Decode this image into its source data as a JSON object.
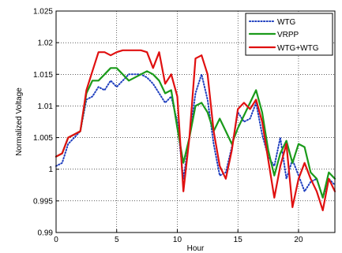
{
  "chart_data": {
    "type": "line",
    "xlabel": "Hour",
    "ylabel": "Normalized Voltage",
    "xlim": [
      0,
      23
    ],
    "ylim": [
      0.99,
      1.025
    ],
    "xticks": [
      0,
      5,
      10,
      15,
      20
    ],
    "yticks": [
      0.99,
      0.995,
      1,
      1.005,
      1.01,
      1.015,
      1.02,
      1.025
    ],
    "ytick_labels": [
      "0.99",
      "0.995",
      "1",
      "1.005",
      "1.01",
      "1.015",
      "1.02",
      "1.025"
    ],
    "grid": true,
    "legend_position": "top-right",
    "series": [
      {
        "name": "WTG",
        "color": "#1f3fbf",
        "style": "dotted",
        "x": [
          0,
          0.5,
          1,
          1.5,
          2,
          2.5,
          3,
          3.5,
          4,
          4.5,
          5,
          5.5,
          6,
          6.5,
          7,
          7.5,
          8,
          8.5,
          9,
          9.5,
          10,
          10.5,
          11,
          11.5,
          12,
          12.5,
          13,
          13.5,
          14,
          14.5,
          15,
          15.5,
          16,
          16.5,
          17,
          17.5,
          18,
          18.5,
          19,
          19.5,
          20,
          20.5,
          21,
          21.5,
          22,
          22.5,
          23
        ],
        "values": [
          1.0005,
          1.001,
          1.004,
          1.005,
          1.006,
          1.011,
          1.0115,
          1.013,
          1.0125,
          1.014,
          1.013,
          1.014,
          1.015,
          1.015,
          1.015,
          1.0145,
          1.0135,
          1.012,
          1.0105,
          1.0115,
          1.0075,
          0.9985,
          1.005,
          1.012,
          1.015,
          1.011,
          1.004,
          0.999,
          0.9995,
          1.0035,
          1.009,
          1.0075,
          1.008,
          1.0105,
          1.0055,
          1.002,
          1.0005,
          1.005,
          0.9985,
          1.0015,
          0.999,
          0.9965,
          0.998,
          0.9985,
          0.9955,
          0.9985,
          0.9975
        ]
      },
      {
        "name": "VRPP",
        "color": "#1a9a1a",
        "style": "solid",
        "x": [
          0,
          0.5,
          1,
          1.5,
          2,
          2.5,
          3,
          3.5,
          4,
          4.5,
          5,
          5.5,
          6,
          6.5,
          7,
          7.5,
          8,
          8.5,
          9,
          9.5,
          10,
          10.5,
          11,
          11.5,
          12,
          12.5,
          13,
          13.5,
          14,
          14.5,
          15,
          15.5,
          16,
          16.5,
          17,
          17.5,
          18,
          18.5,
          19,
          19.5,
          20,
          20.5,
          21,
          21.5,
          22,
          22.5,
          23
        ],
        "values": [
          1.002,
          1.0025,
          1.005,
          1.0055,
          1.006,
          1.012,
          1.014,
          1.014,
          1.015,
          1.016,
          1.016,
          1.015,
          1.014,
          1.0145,
          1.015,
          1.0155,
          1.015,
          1.014,
          1.012,
          1.0125,
          1.0065,
          1.001,
          1.005,
          1.01,
          1.0105,
          1.009,
          1.006,
          1.008,
          1.006,
          1.004,
          1.0065,
          1.0085,
          1.0105,
          1.0125,
          1.009,
          1.003,
          0.999,
          1.0025,
          1.0045,
          1.001,
          1.004,
          1.0035,
          0.9995,
          0.9985,
          0.9955,
          0.9995,
          0.9985
        ]
      },
      {
        "name": "WTG+WTG",
        "color": "#e01010",
        "style": "solid",
        "x": [
          0,
          0.5,
          1,
          1.5,
          2,
          2.5,
          3,
          3.5,
          4,
          4.5,
          5,
          5.5,
          6,
          6.5,
          7,
          7.5,
          8,
          8.5,
          9,
          9.5,
          10,
          10.5,
          11,
          11.5,
          12,
          12.5,
          13,
          13.5,
          14,
          14.5,
          15,
          15.5,
          16,
          16.5,
          17,
          17.5,
          18,
          18.5,
          19,
          19.5,
          20,
          20.5,
          21,
          21.5,
          22,
          22.5,
          23
        ],
        "values": [
          1.002,
          1.0025,
          1.005,
          1.0055,
          1.006,
          1.0125,
          1.0155,
          1.0185,
          1.0185,
          1.018,
          1.0185,
          1.0188,
          1.0188,
          1.0188,
          1.0188,
          1.0185,
          1.016,
          1.0185,
          1.0135,
          1.015,
          1.0115,
          0.9965,
          1.005,
          1.0175,
          1.018,
          1.015,
          1.006,
          1.0005,
          0.9985,
          1.003,
          1.0095,
          1.0105,
          1.0095,
          1.011,
          1.0075,
          1.0015,
          0.9955,
          1.0005,
          1.004,
          0.994,
          0.9985,
          1.001,
          0.9985,
          0.9965,
          0.9935,
          0.9985,
          0.9965
        ]
      }
    ]
  }
}
